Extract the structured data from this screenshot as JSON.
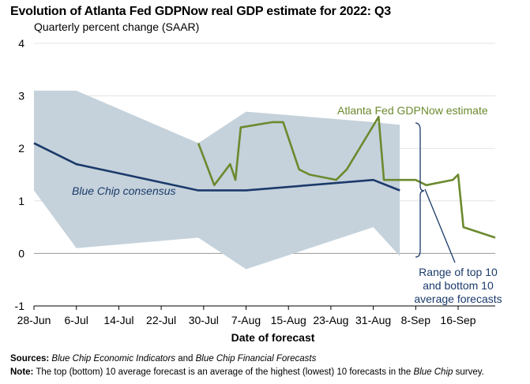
{
  "title": "Evolution of Atlanta Fed GDPNow real GDP estimate for 2022: Q3",
  "subtitle": "Quarterly percent change (SAAR)",
  "footer": {
    "sources_label": "Sources:",
    "sources_part1": "Blue Chip Economic Indicators",
    "sources_and": " and ",
    "sources_part2": "Blue Chip Financial Forecasts",
    "note_label": "Note:",
    "note_text": " The top (bottom) 10 average forecast is an average of the highest (lowest) 10 forecasts in the ",
    "note_italic": "Blue Chip",
    "note_end": " survey."
  },
  "chart_data": {
    "type": "line",
    "title": "Evolution of Atlanta Fed GDPNow real GDP estimate for 2022: Q3",
    "subtitle": "Quarterly percent change (SAAR)",
    "xlabel": "Date of forecast",
    "ylabel": "",
    "xlim": [
      "2022-06-28",
      "2022-09-23"
    ],
    "ylim": [
      -1,
      4
    ],
    "yticks": [
      -1,
      0,
      1,
      2,
      3,
      4
    ],
    "xticks": [
      "2022-06-28",
      "2022-07-06",
      "2022-07-14",
      "2022-07-22",
      "2022-07-30",
      "2022-08-07",
      "2022-08-15",
      "2022-08-23",
      "2022-08-31",
      "2022-09-08",
      "2022-09-16"
    ],
    "xtick_labels": [
      "28-Jun",
      "6-Jul",
      "14-Jul",
      "22-Jul",
      "30-Jul",
      "7-Aug",
      "15-Aug",
      "23-Aug",
      "31-Aug",
      "8-Sep",
      "16-Sep"
    ],
    "grid": "horizontal",
    "series": [
      {
        "name": "Range of top 10 and bottom 10 average forecasts",
        "kind": "band",
        "color": "#c5d2db",
        "x": [
          "2022-06-28",
          "2022-07-06",
          "2022-07-29",
          "2022-08-07",
          "2022-08-31",
          "2022-09-05"
        ],
        "upper": [
          3.1,
          3.1,
          2.1,
          2.7,
          2.5,
          2.45
        ],
        "lower": [
          1.2,
          0.1,
          0.3,
          -0.3,
          0.5,
          -0.05
        ]
      },
      {
        "name": "Blue Chip consensus",
        "kind": "line",
        "color": "#1b3a6b",
        "x": [
          "2022-06-28",
          "2022-07-06",
          "2022-07-29",
          "2022-08-07",
          "2022-08-31",
          "2022-09-05"
        ],
        "values": [
          2.1,
          1.7,
          1.2,
          1.2,
          1.4,
          1.2
        ]
      },
      {
        "name": "Atlanta Fed GDPNow estimate",
        "kind": "line",
        "color": "#6b8a2e",
        "x": [
          "2022-07-29",
          "2022-08-01",
          "2022-08-04",
          "2022-08-05",
          "2022-08-06",
          "2022-08-12",
          "2022-08-14",
          "2022-08-17",
          "2022-08-19",
          "2022-08-24",
          "2022-08-26",
          "2022-09-01",
          "2022-09-02",
          "2022-09-08",
          "2022-09-10",
          "2022-09-15",
          "2022-09-16",
          "2022-09-17",
          "2022-09-23"
        ],
        "values": [
          2.1,
          1.3,
          1.7,
          1.4,
          2.4,
          2.5,
          2.5,
          1.6,
          1.5,
          1.4,
          1.6,
          2.6,
          1.4,
          1.4,
          1.3,
          1.4,
          1.5,
          0.5,
          0.3
        ]
      }
    ],
    "annotations": {
      "gdpnow": "Atlanta Fed GDPNow estimate",
      "bluechip": "Blue Chip consensus",
      "range_line1": "Range of top 10",
      "range_line2": "and bottom 10",
      "range_line3": "average forecasts"
    }
  }
}
